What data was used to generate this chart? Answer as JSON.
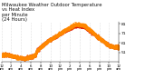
{
  "title_line1": "Milwaukee Weather Outdoor Temperature",
  "title_line2": "vs Heat Index",
  "title_line3": "per Minute",
  "title_line4": "(24 Hours)",
  "title_fontsize": 3.8,
  "bg_color": "#ffffff",
  "plot_bg_color": "#ffffff",
  "grid_color": "#aaaaaa",
  "series_temp": {
    "label": "Outdoor Temp",
    "color": "#dd1100",
    "markersize": 0.9
  },
  "series_heat": {
    "label": "Heat Index",
    "color": "#ff8800",
    "markersize": 0.9
  },
  "ylim": [
    41,
    83
  ],
  "yticks": [
    51,
    61,
    71,
    81
  ],
  "ylabel_fontsize": 3.2,
  "xlabel_fontsize": 2.8,
  "num_minutes": 1440
}
